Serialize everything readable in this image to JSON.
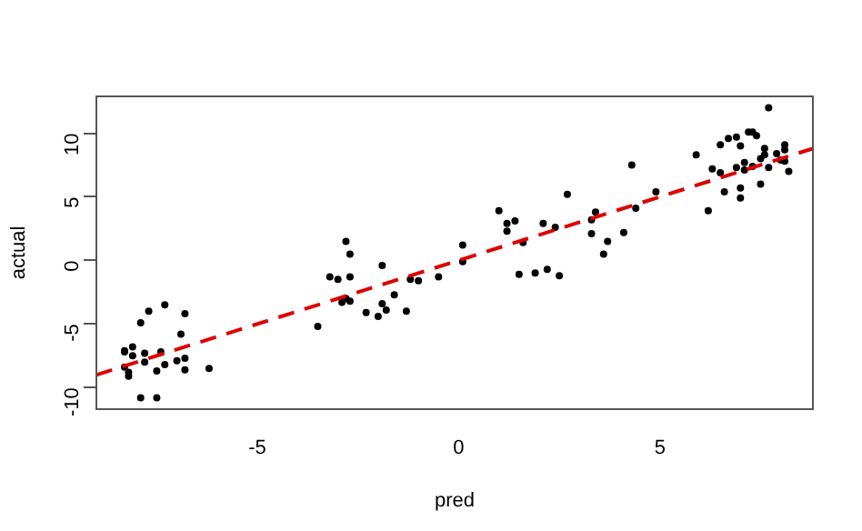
{
  "chart_data": {
    "type": "scatter",
    "xlabel": "pred",
    "ylabel": "actual",
    "xlim": [
      -9,
      8.8
    ],
    "ylim": [
      -11.7,
      12.9
    ],
    "xticks": [
      -5,
      0,
      5
    ],
    "yticks": [
      -10,
      -5,
      0,
      5,
      10
    ],
    "grid": false,
    "legend": false,
    "marker": "circle",
    "series": [
      {
        "color": "#000000",
        "x": [
          -8.3,
          -8.3,
          -8.1,
          -8.1,
          -8.3,
          -8.2,
          -8.2,
          -7.9,
          -7.5,
          -7.9,
          -7.7,
          -7.8,
          -7.8,
          -7.4,
          -7.3,
          -7.5,
          -7.3,
          -7.0,
          -6.9,
          -6.8,
          -6.8,
          -6.8,
          -6.2,
          -3.5,
          -3.2,
          -3.0,
          -2.8,
          -2.7,
          -2.7,
          -2.9,
          -2.8,
          -2.7,
          -2.3,
          -2.0,
          -1.9,
          -1.9,
          -1.8,
          -1.6,
          -1.3,
          -1.2,
          -1.0,
          -0.5,
          0.1,
          0.1,
          1.0,
          1.2,
          1.2,
          1.4,
          1.6,
          1.5,
          1.9,
          2.2,
          2.1,
          2.4,
          2.5,
          2.7,
          3.3,
          3.3,
          3.4,
          3.6,
          3.7,
          4.1,
          4.3,
          4.4,
          4.9,
          5.9,
          6.2,
          6.3,
          6.5,
          6.5,
          6.6,
          6.7,
          6.9,
          6.9,
          7.0,
          7.0,
          7.0,
          7.1,
          7.1,
          7.2,
          7.3,
          7.4,
          7.3,
          7.5,
          7.6,
          7.5,
          7.6,
          7.7,
          7.7,
          7.9,
          8.0,
          8.1,
          8.1,
          8.2,
          8.1
        ],
        "values": [
          -7.2,
          -7.1,
          -6.8,
          -7.5,
          -8.4,
          -8.8,
          -9.1,
          -10.8,
          -10.8,
          -4.9,
          -4.0,
          -7.3,
          -8.0,
          -7.2,
          -8.2,
          -8.7,
          -3.5,
          -7.9,
          -5.8,
          -7.7,
          -8.6,
          -4.2,
          -8.5,
          -5.2,
          -1.3,
          -1.5,
          1.5,
          0.5,
          -1.3,
          -3.3,
          -3.0,
          -3.2,
          -4.1,
          -4.4,
          -0.4,
          -3.4,
          -3.9,
          -2.7,
          -4.0,
          -1.5,
          -1.6,
          -1.3,
          -0.1,
          1.2,
          3.9,
          2.3,
          2.9,
          3.1,
          1.4,
          -1.1,
          -1.0,
          -0.7,
          2.9,
          2.6,
          -1.2,
          5.2,
          2.1,
          3.2,
          3.8,
          0.5,
          1.5,
          2.2,
          7.5,
          4.1,
          5.4,
          8.3,
          3.9,
          7.2,
          9.1,
          6.9,
          5.4,
          9.6,
          9.7,
          7.3,
          9.0,
          4.9,
          5.7,
          7.7,
          7.1,
          10.1,
          10.1,
          9.8,
          7.4,
          6.0,
          8.8,
          8.0,
          8.3,
          12.0,
          7.3,
          8.4,
          7.9,
          9.1,
          8.7,
          7.0,
          7.8
        ]
      },
      {
        "type": "line",
        "color": "#dd0000",
        "line_style": "dashed",
        "marker": "none",
        "x": [
          -9,
          8.8
        ],
        "values": [
          -9,
          8.8
        ]
      }
    ]
  }
}
